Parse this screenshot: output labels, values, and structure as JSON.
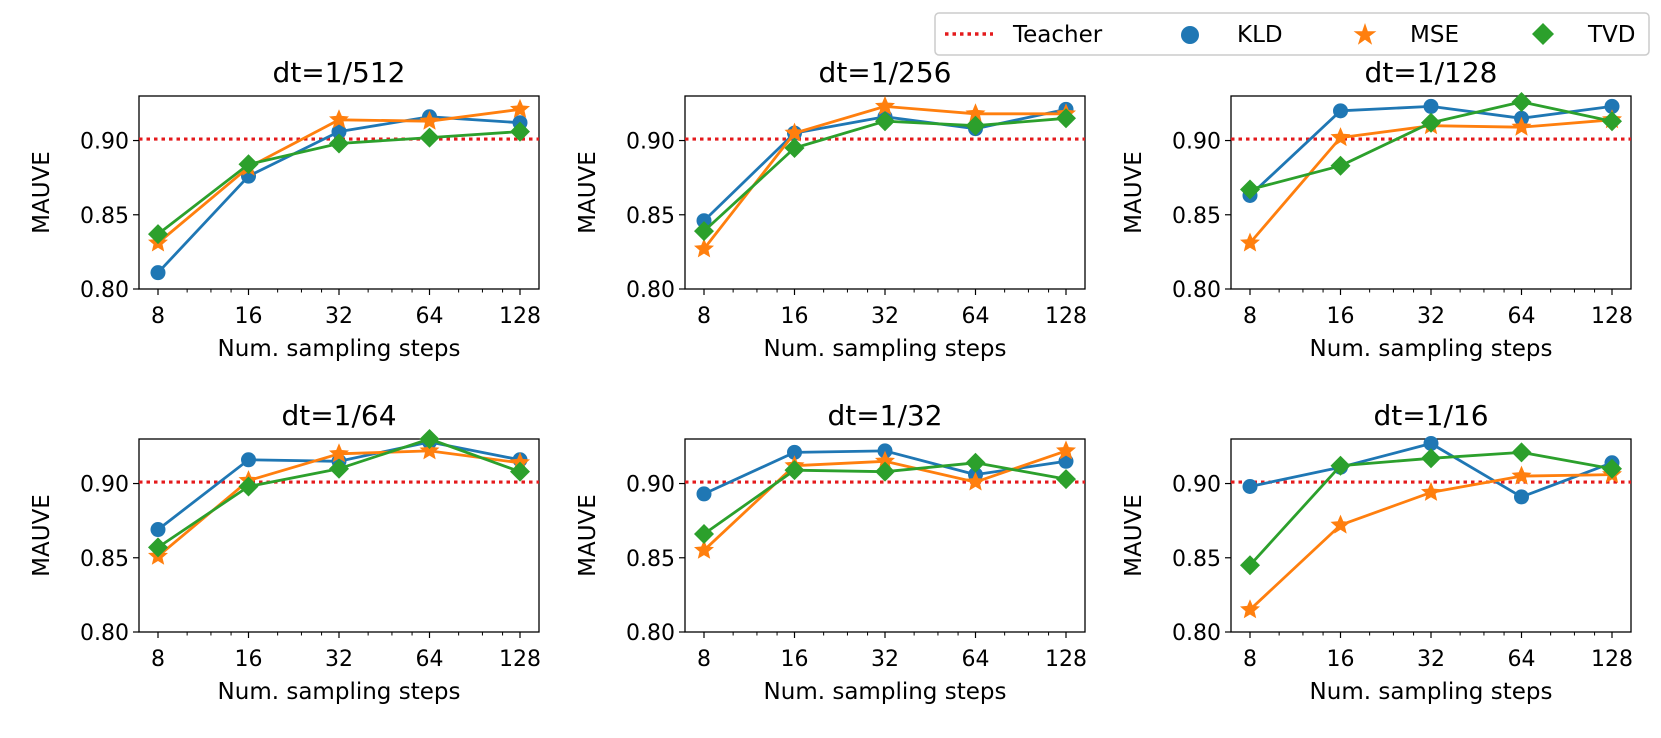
{
  "legend": {
    "teacher_label": "Teacher",
    "kld_label": "KLD",
    "mse_label": "MSE",
    "tvd_label": "TVD"
  },
  "colors": {
    "teacher": "#e41a1c",
    "KLD": "#1f77b4",
    "MSE": "#ff7f0e",
    "TVD": "#2ca02c"
  },
  "chart_data": [
    {
      "type": "line",
      "title": "dt=1/512",
      "x": [
        8,
        16,
        32,
        64,
        128
      ],
      "xtick_labels": [
        "8",
        "16",
        "32",
        "64",
        "128"
      ],
      "xlabel": "Num. sampling steps",
      "ylabel": "MAUVE",
      "ylim": [
        0.8,
        0.93
      ],
      "yticks": [
        "0.80",
        "0.85",
        "0.90"
      ],
      "teacher": 0.901,
      "series": [
        {
          "name": "KLD",
          "values": [
            0.811,
            0.876,
            0.906,
            0.916,
            0.912
          ]
        },
        {
          "name": "MSE",
          "values": [
            0.831,
            0.882,
            0.914,
            0.913,
            0.921
          ]
        },
        {
          "name": "TVD",
          "values": [
            0.837,
            0.884,
            0.898,
            0.902,
            0.906
          ]
        }
      ]
    },
    {
      "type": "line",
      "title": "dt=1/256",
      "x": [
        8,
        16,
        32,
        64,
        128
      ],
      "xtick_labels": [
        "8",
        "16",
        "32",
        "64",
        "128"
      ],
      "xlabel": "Num. sampling steps",
      "ylabel": "MAUVE",
      "ylim": [
        0.8,
        0.93
      ],
      "yticks": [
        "0.80",
        "0.85",
        "0.90"
      ],
      "teacher": 0.901,
      "series": [
        {
          "name": "KLD",
          "values": [
            0.846,
            0.905,
            0.916,
            0.908,
            0.921
          ]
        },
        {
          "name": "MSE",
          "values": [
            0.827,
            0.905,
            0.923,
            0.918,
            0.918
          ]
        },
        {
          "name": "TVD",
          "values": [
            0.839,
            0.895,
            0.913,
            0.91,
            0.915
          ]
        }
      ]
    },
    {
      "type": "line",
      "title": "dt=1/128",
      "x": [
        8,
        16,
        32,
        64,
        128
      ],
      "xtick_labels": [
        "8",
        "16",
        "32",
        "64",
        "128"
      ],
      "xlabel": "Num. sampling steps",
      "ylabel": "MAUVE",
      "ylim": [
        0.8,
        0.93
      ],
      "yticks": [
        "0.80",
        "0.85",
        "0.90"
      ],
      "teacher": 0.901,
      "series": [
        {
          "name": "KLD",
          "values": [
            0.863,
            0.92,
            0.923,
            0.915,
            0.923
          ]
        },
        {
          "name": "MSE",
          "values": [
            0.831,
            0.902,
            0.91,
            0.909,
            0.914
          ]
        },
        {
          "name": "TVD",
          "values": [
            0.867,
            0.883,
            0.912,
            0.926,
            0.913
          ]
        }
      ]
    },
    {
      "type": "line",
      "title": "dt=1/64",
      "x": [
        8,
        16,
        32,
        64,
        128
      ],
      "xtick_labels": [
        "8",
        "16",
        "32",
        "64",
        "128"
      ],
      "xlabel": "Num. sampling steps",
      "ylabel": "MAUVE",
      "ylim": [
        0.8,
        0.93
      ],
      "yticks": [
        "0.80",
        "0.85",
        "0.90"
      ],
      "teacher": 0.901,
      "series": [
        {
          "name": "KLD",
          "values": [
            0.869,
            0.916,
            0.915,
            0.928,
            0.916
          ]
        },
        {
          "name": "MSE",
          "values": [
            0.851,
            0.902,
            0.92,
            0.922,
            0.914
          ]
        },
        {
          "name": "TVD",
          "values": [
            0.857,
            0.898,
            0.91,
            0.93,
            0.908
          ]
        }
      ]
    },
    {
      "type": "line",
      "title": "dt=1/32",
      "x": [
        8,
        16,
        32,
        64,
        128
      ],
      "xtick_labels": [
        "8",
        "16",
        "32",
        "64",
        "128"
      ],
      "xlabel": "Num. sampling steps",
      "ylabel": "MAUVE",
      "ylim": [
        0.8,
        0.93
      ],
      "yticks": [
        "0.80",
        "0.85",
        "0.90"
      ],
      "teacher": 0.901,
      "series": [
        {
          "name": "KLD",
          "values": [
            0.893,
            0.921,
            0.922,
            0.906,
            0.915
          ]
        },
        {
          "name": "MSE",
          "values": [
            0.855,
            0.912,
            0.915,
            0.901,
            0.922
          ]
        },
        {
          "name": "TVD",
          "values": [
            0.866,
            0.909,
            0.908,
            0.914,
            0.903
          ]
        }
      ]
    },
    {
      "type": "line",
      "title": "dt=1/16",
      "x": [
        8,
        16,
        32,
        64,
        128
      ],
      "xtick_labels": [
        "8",
        "16",
        "32",
        "64",
        "128"
      ],
      "xlabel": "Num. sampling steps",
      "ylabel": "MAUVE",
      "ylim": [
        0.8,
        0.93
      ],
      "yticks": [
        "0.80",
        "0.85",
        "0.90"
      ],
      "teacher": 0.901,
      "series": [
        {
          "name": "KLD",
          "values": [
            0.898,
            0.911,
            0.927,
            0.891,
            0.914
          ]
        },
        {
          "name": "MSE",
          "values": [
            0.815,
            0.872,
            0.894,
            0.905,
            0.906
          ]
        },
        {
          "name": "TVD",
          "values": [
            0.845,
            0.912,
            0.917,
            0.921,
            0.91
          ]
        }
      ]
    }
  ]
}
